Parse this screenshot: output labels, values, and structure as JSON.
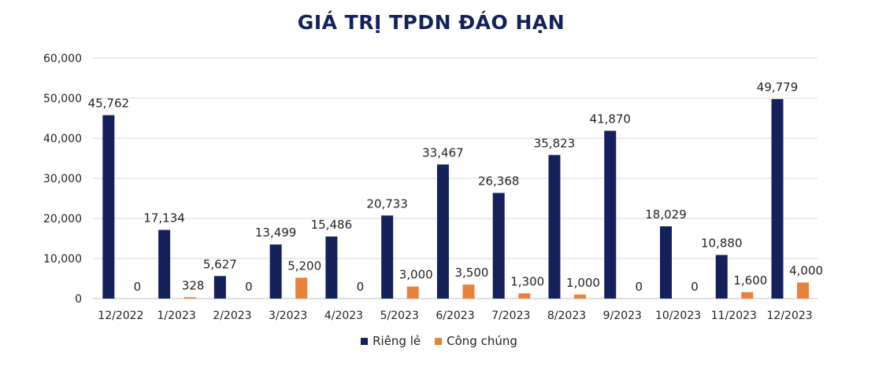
{
  "chart_data": {
    "type": "bar",
    "title": "GIÁ TRỊ TPDN ĐÁO HẠN",
    "categories": [
      "12/2022",
      "1/2023",
      "2/2023",
      "3/2023",
      "4/2023",
      "5/2023",
      "6/2023",
      "7/2023",
      "8/2023",
      "9/2023",
      "10/2023",
      "11/2023",
      "12/2023"
    ],
    "series": [
      {
        "name": "Riêng lẻ",
        "color": "#14215a",
        "values": [
          45762,
          17134,
          5627,
          13499,
          15486,
          20733,
          33467,
          26368,
          35823,
          41870,
          18029,
          10880,
          49779
        ],
        "labels": [
          "45,762",
          "17,134",
          "5,627",
          "13,499",
          "15,486",
          "20,733",
          "33,467",
          "26,368",
          "35,823",
          "41,870",
          "18,029",
          "10,880",
          "49,779"
        ]
      },
      {
        "name": "Công chúng",
        "color": "#e8823a",
        "values": [
          0,
          328,
          0,
          5200,
          0,
          3000,
          3500,
          1300,
          1000,
          0,
          0,
          1600,
          4000
        ],
        "labels": [
          "0",
          "328",
          "0",
          "5,200",
          "0",
          "3,000",
          "3,500",
          "1,300",
          "1,000",
          "0",
          "0",
          "1,600",
          "4,000"
        ]
      }
    ],
    "ylim": [
      0,
      60000
    ],
    "yticks": [
      0,
      10000,
      20000,
      30000,
      40000,
      50000,
      60000
    ],
    "ytick_labels": [
      "0",
      "10,000",
      "20,000",
      "30,000",
      "40,000",
      "50,000",
      "60,000"
    ],
    "grid": true,
    "legend_position": "bottom"
  }
}
